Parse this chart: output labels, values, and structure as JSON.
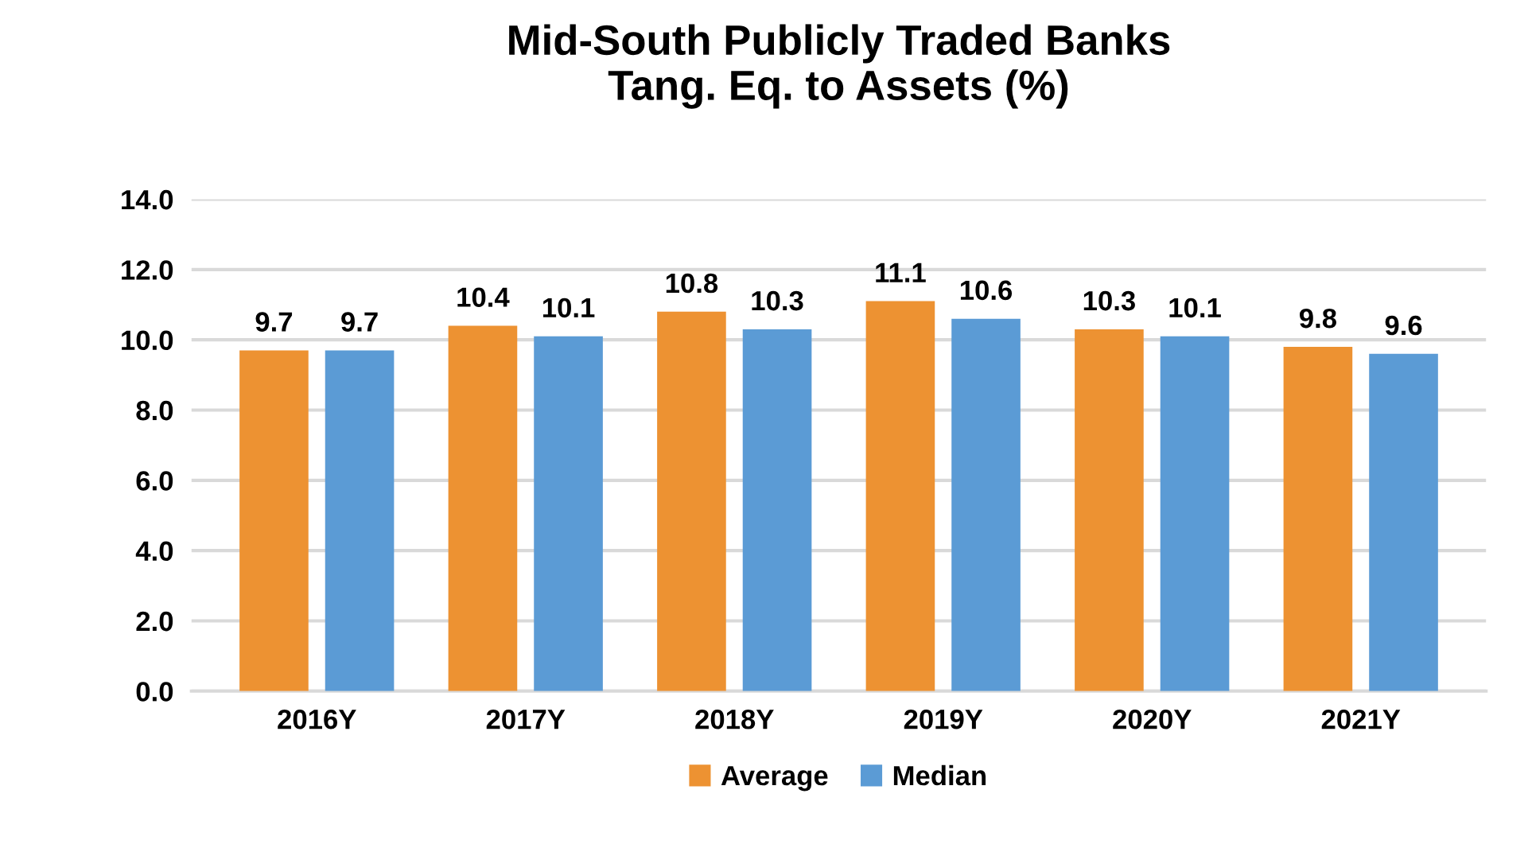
{
  "chart_data": {
    "type": "bar",
    "title": "Mid-South Publicly Traded Banks\nTang. Eq. to Assets (%)",
    "categories": [
      "2016Y",
      "2017Y",
      "2018Y",
      "2019Y",
      "2020Y",
      "2021Y"
    ],
    "series": [
      {
        "name": "Average",
        "color": "#ed9232",
        "values": [
          9.7,
          10.4,
          10.8,
          11.1,
          10.3,
          9.8
        ]
      },
      {
        "name": "Median",
        "color": "#5b9bd5",
        "values": [
          9.7,
          10.1,
          10.3,
          10.6,
          10.1,
          9.6
        ]
      }
    ],
    "ylim": [
      0,
      14
    ],
    "yticks": [
      {
        "value": 0,
        "label": "0.0"
      },
      {
        "value": 2,
        "label": "2.0"
      },
      {
        "value": 4,
        "label": "4.0"
      },
      {
        "value": 6,
        "label": "6.0"
      },
      {
        "value": 8,
        "label": "8.0"
      },
      {
        "value": 10,
        "label": "10.0"
      },
      {
        "value": 12,
        "label": "12.0"
      },
      {
        "value": 14,
        "label": "14.0"
      }
    ],
    "grid": "y",
    "legend": "bottom",
    "data_labels": true
  }
}
